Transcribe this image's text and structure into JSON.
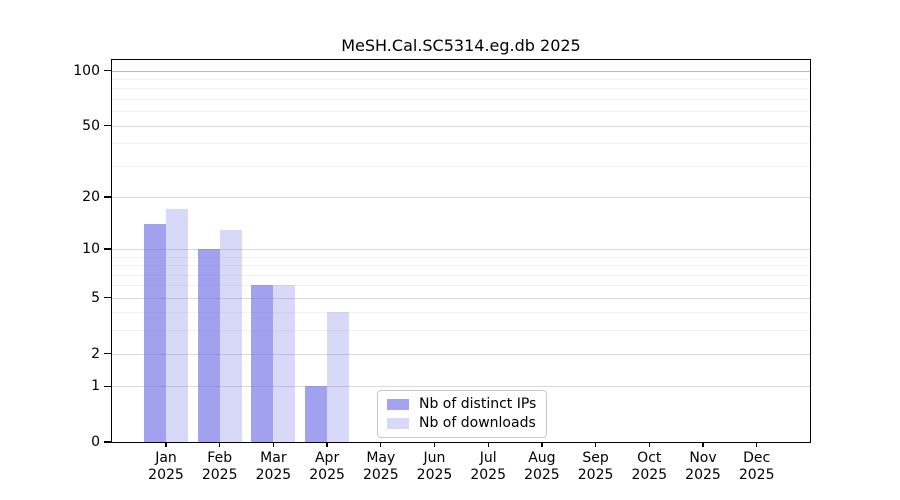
{
  "page": {
    "background": "#ffffff"
  },
  "chart_data": {
    "type": "bar",
    "title": "MeSH.Cal.SC5314.eg.db 2025",
    "categories": [
      "Jan",
      "Feb",
      "Mar",
      "Apr",
      "May",
      "Jun",
      "Jul",
      "Aug",
      "Sep",
      "Oct",
      "Nov",
      "Dec"
    ],
    "x_sublabel": "2025",
    "series": [
      {
        "name": "Nb of distinct IPs",
        "color": "rgba(104,104,230,0.62)",
        "legend_color": "#a3a3ef",
        "values": [
          14,
          10,
          6,
          1,
          0,
          0,
          0,
          0,
          0,
          0,
          0,
          0
        ]
      },
      {
        "name": "Nb of downloads",
        "color": "rgba(104,104,230,0.26)",
        "legend_color": "#d8d8f7",
        "values": [
          17,
          13,
          6,
          4,
          0,
          0,
          0,
          0,
          0,
          0,
          0,
          0
        ]
      }
    ],
    "y_axis": {
      "scale": "log1p",
      "ticks": [
        0,
        1,
        2,
        5,
        10,
        20,
        50,
        100
      ],
      "minor_gridlines": [
        3,
        4,
        6,
        7,
        8,
        9,
        30,
        40,
        60,
        70,
        80,
        90
      ],
      "range": [
        0,
        100
      ],
      "grid": true
    },
    "legend": {
      "position": "inside-bottom-center"
    }
  }
}
